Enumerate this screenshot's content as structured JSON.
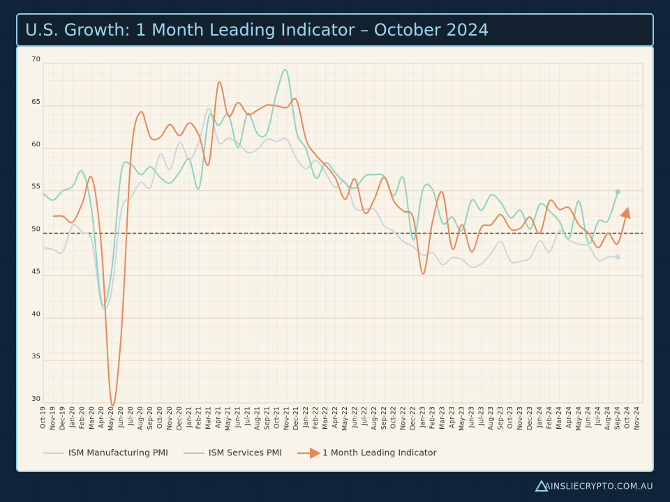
{
  "chart_data": {
    "type": "line",
    "title": "U.S. Growth: 1 Month Leading Indicator – October 2024",
    "categories": [
      "Oct-19",
      "Nov-19",
      "Dec-19",
      "Jan-20",
      "Feb-20",
      "Mar-20",
      "Apr-20",
      "May-20",
      "Jun-20",
      "Jul-20",
      "Aug-20",
      "Sep-20",
      "Oct-20",
      "Nov-20",
      "Dec-20",
      "Jan-21",
      "Feb-21",
      "Mar-21",
      "Apr-21",
      "May-21",
      "Jun-21",
      "Jul-21",
      "Aug-21",
      "Sep-21",
      "Oct-21",
      "Nov-21",
      "Dec-21",
      "Jan-22",
      "Feb-22",
      "Mar-22",
      "Apr-22",
      "May-22",
      "Jun-22",
      "Jul-22",
      "Aug-22",
      "Sep-22",
      "Oct-22",
      "Nov-22",
      "Dec-22",
      "Jan-23",
      "Feb-23",
      "Mar-23",
      "Apr-23",
      "May-23",
      "Jun-23",
      "Jul-23",
      "Aug-23",
      "Sep-23",
      "Oct-23",
      "Nov-23",
      "Dec-23",
      "Jan-24",
      "Feb-24",
      "Mar-24",
      "Apr-24",
      "May-24",
      "Jun-24",
      "Jul-24",
      "Aug-24",
      "Sep-24",
      "Oct-24",
      "Nov-24"
    ],
    "series": [
      {
        "name": "ISM Manufacturing PMI",
        "color": "#c9d6df",
        "end_marker": "dot",
        "values": [
          48.3,
          48.1,
          47.8,
          50.9,
          50.1,
          49.1,
          41.5,
          43.1,
          52.6,
          54.2,
          56.0,
          55.4,
          59.3,
          57.5,
          60.7,
          58.7,
          60.8,
          64.7,
          60.7,
          61.2,
          60.6,
          59.5,
          59.9,
          61.1,
          60.8,
          61.1,
          58.8,
          57.6,
          58.6,
          57.1,
          55.4,
          56.1,
          53.0,
          52.8,
          52.8,
          50.9,
          50.2,
          49.0,
          48.4,
          47.4,
          47.7,
          46.3,
          47.1,
          46.9,
          46.0,
          46.4,
          47.6,
          49.0,
          46.7,
          46.7,
          47.1,
          49.1,
          47.8,
          50.3,
          49.2,
          48.7,
          48.5,
          46.8,
          47.2,
          47.2,
          null,
          null
        ]
      },
      {
        "name": "ISM Services PMI",
        "color": "#8fd3bf",
        "end_marker": "dot",
        "values": [
          54.7,
          53.9,
          55.0,
          55.5,
          57.3,
          52.5,
          41.8,
          45.4,
          57.1,
          58.1,
          56.9,
          57.8,
          56.6,
          55.9,
          57.2,
          58.7,
          55.3,
          63.7,
          62.7,
          64.0,
          60.1,
          64.1,
          61.7,
          61.9,
          66.7,
          69.1,
          62.0,
          59.9,
          56.5,
          58.3,
          57.1,
          55.9,
          55.3,
          56.7,
          56.9,
          56.7,
          54.4,
          56.5,
          49.2,
          55.2,
          55.1,
          51.2,
          51.9,
          50.3,
          53.9,
          52.7,
          54.5,
          53.6,
          51.8,
          52.7,
          50.5,
          53.4,
          52.6,
          51.4,
          49.4,
          53.8,
          48.8,
          51.4,
          51.5,
          54.9,
          null,
          null
        ]
      },
      {
        "name": "1 Month Leading Indicator",
        "color": "#e8875a",
        "end_marker": "arrow",
        "values": [
          null,
          52.0,
          52.0,
          51.3,
          53.5,
          56.5,
          48.0,
          30.0,
          38.0,
          59.0,
          64.3,
          61.3,
          61.3,
          62.8,
          61.5,
          63.0,
          61.5,
          58.2,
          67.7,
          63.8,
          65.4,
          64.0,
          64.5,
          65.1,
          65.0,
          64.8,
          65.7,
          61.0,
          59.2,
          58.0,
          56.5,
          54.0,
          56.4,
          52.4,
          54.0,
          56.6,
          53.8,
          52.6,
          51.8,
          45.2,
          51.5,
          54.8,
          48.2,
          51.0,
          47.8,
          50.7,
          51.0,
          52.2,
          50.5,
          50.6,
          51.9,
          50.0,
          53.8,
          52.8,
          53.0,
          51.0,
          50.0,
          48.3,
          50.0,
          48.8,
          52.8,
          null
        ]
      }
    ],
    "ylim": [
      30,
      70
    ],
    "yticks": [
      30,
      35,
      40,
      45,
      50,
      55,
      60,
      65,
      70
    ],
    "reference_line": 50,
    "grid": true,
    "legend": "bottom-left"
  },
  "footer": {
    "brand": "AINSLIECRYPTO.COM.AU"
  }
}
